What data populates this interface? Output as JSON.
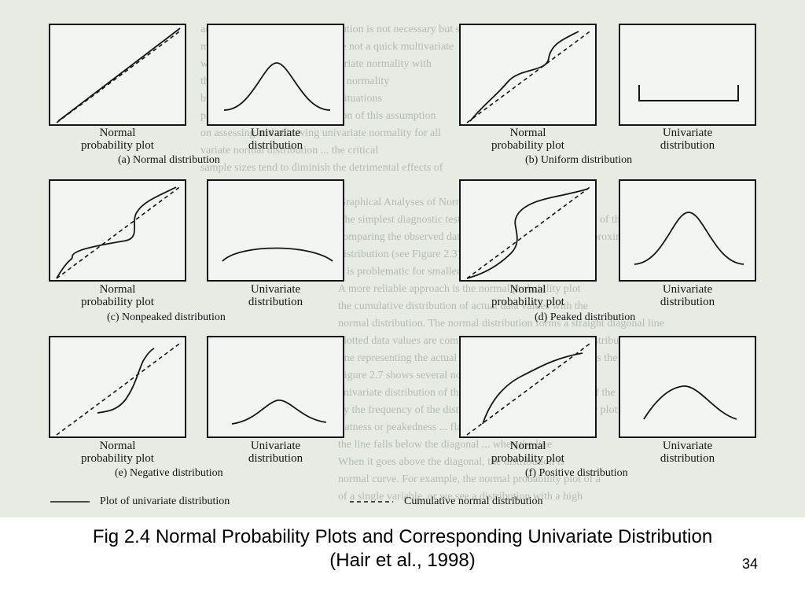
{
  "figure": {
    "rows": [
      {
        "caption": "(a) Normal distribution",
        "panels": [
          {
            "line1": "Normal",
            "line2": "probability plot",
            "curve": "npp-normal"
          },
          {
            "line1": "Univariate",
            "line2": "distribution",
            "curve": "dist-normal"
          },
          {
            "line1": "Normal",
            "line2": "probability plot",
            "curve": "npp-uniform"
          },
          {
            "line1": "Univariate",
            "line2": "distribution",
            "curve": "dist-uniform"
          }
        ],
        "caption2": "(b) Uniform distribution"
      },
      {
        "caption": "(c) Nonpeaked distribution",
        "panels": [
          {
            "line1": "Normal",
            "line2": "probability plot",
            "curve": "npp-nonpeaked"
          },
          {
            "line1": "Univariate",
            "line2": "distribution",
            "curve": "dist-nonpeaked"
          },
          {
            "line1": "Normal",
            "line2": "probability plot",
            "curve": "npp-peaked"
          },
          {
            "line1": "Univariate",
            "line2": "distribution",
            "curve": "dist-peaked"
          }
        ],
        "caption2": "(d) Peaked distribution"
      },
      {
        "caption": "(e) Negative distribution",
        "panels": [
          {
            "line1": "Normal",
            "line2": "probability plot",
            "curve": "npp-negative"
          },
          {
            "line1": "Univariate",
            "line2": "distribution",
            "curve": "dist-negative"
          },
          {
            "line1": "Normal",
            "line2": "probability plot",
            "curve": "npp-positive"
          },
          {
            "line1": "Univariate",
            "line2": "distribution",
            "curve": "dist-positive"
          }
        ],
        "caption2": "(f) Positive distribution"
      }
    ],
    "legend": {
      "solid_label": "Plot of univariate distribution",
      "dashed_label": "Cumulative normal distribution"
    }
  },
  "caption": {
    "line1": "Fig 2.4  Normal Probability Plots and Corresponding Univariate Distribution",
    "line2": "(Hair et al., 1998)"
  },
  "page_number": "34",
  "colors": {
    "ink": "#151515",
    "paper": "#e6ebe3",
    "panel": "#f3f5f2",
    "bleed": "#b4bbb3"
  }
}
